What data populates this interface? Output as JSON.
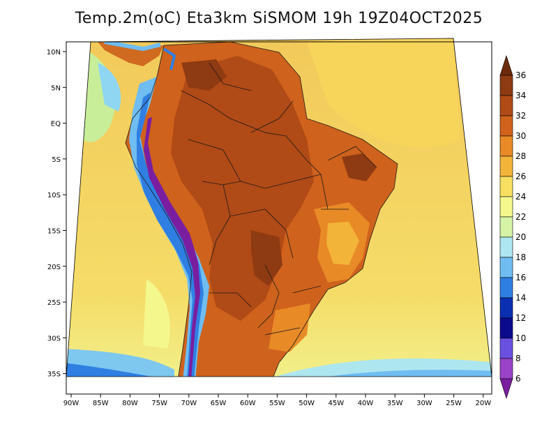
{
  "title": "Temp.2m(oC) Eta3km SiSMOM 19h 19Z04OCT2025",
  "map": {
    "variable": "2 m temperature",
    "unit": "oC",
    "region": "South America",
    "lat_labels": [
      "10N",
      "5N",
      "EQ",
      "5S",
      "10S",
      "15S",
      "20S",
      "25S",
      "30S",
      "35S"
    ],
    "lon_labels": [
      "90W",
      "85W",
      "80W",
      "75W",
      "70W",
      "65W",
      "60W",
      "55W",
      "50W",
      "45W",
      "40W",
      "35W",
      "30W",
      "25W",
      "20W"
    ]
  },
  "colorbar": {
    "labels": [
      "36",
      "34",
      "32",
      "30",
      "28",
      "26",
      "24",
      "22",
      "20",
      "18",
      "16",
      "14",
      "12",
      "10",
      "8",
      "6"
    ],
    "colors": [
      "#6b2a0c",
      "#8e3a12",
      "#b04a16",
      "#cf621c",
      "#e88a26",
      "#f3b43a",
      "#f7e061",
      "#f4f78c",
      "#d6f2a6",
      "#aee6f0",
      "#6fbdf1",
      "#2f7fe3",
      "#0a2fb0",
      "#0a0a8c",
      "#6a50e0",
      "#9a42c8",
      "#7a1ea0"
    ]
  }
}
